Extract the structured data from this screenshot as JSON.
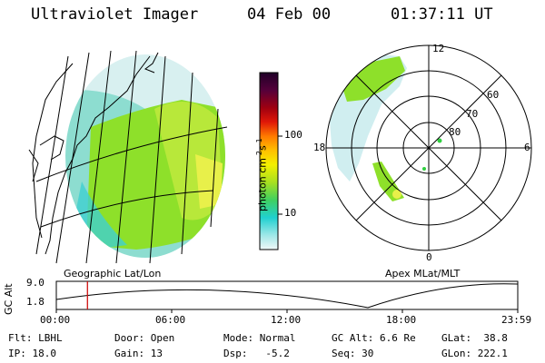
{
  "header": {
    "instrument": "Ultraviolet Imager",
    "date": "04 Feb 00",
    "time": "01:37:11 UT"
  },
  "left_panel": {
    "caption": "Geographic Lat/Lon"
  },
  "right_panel": {
    "caption": "Apex MLat/MLT",
    "lat_rings": [
      "80",
      "70",
      "60"
    ],
    "mlt_labels": {
      "top": "12",
      "bottom": "0",
      "left": "18",
      "right": "6"
    }
  },
  "colorbar": {
    "ticks": [
      "100",
      "10"
    ],
    "unit_text": "photon cm",
    "unit_exp1": "-2",
    "unit_mid": "s",
    "unit_exp2": "-1"
  },
  "altitude_plot": {
    "ylabel": "GC Alt",
    "ymax": "9.0",
    "ymin": "1.8",
    "x_ticks": [
      "00:00",
      "06:00",
      "12:00",
      "18:00",
      "23:59"
    ],
    "current_time_hours": 1.62
  },
  "footer": {
    "filter": "Flt: LBHL",
    "ip": "IP: 18.0",
    "door": "Door: Open",
    "gain": "Gain: 13",
    "mode": "Mode: Normal",
    "dsp": "Dsp:   -5.2",
    "gc_alt": "GC Alt: 6.6 Re",
    "seq": "Seq: 30",
    "glat": "GLat:  38.8",
    "glon": "GLon: 222.1"
  },
  "colors": {
    "colorbar_stops": [
      "#2a0030",
      "#4a0040",
      "#8a0020",
      "#d01010",
      "#ff6000",
      "#ffb000",
      "#ffff00",
      "#a0e000",
      "#30d060",
      "#20d0c0",
      "#80e8e8",
      "#e8f8f8"
    ],
    "image_green": "#8ee02a",
    "image_yellow": "#e8f04a",
    "image_cyan": "#40d0d0",
    "time_marker": "#d01010"
  }
}
